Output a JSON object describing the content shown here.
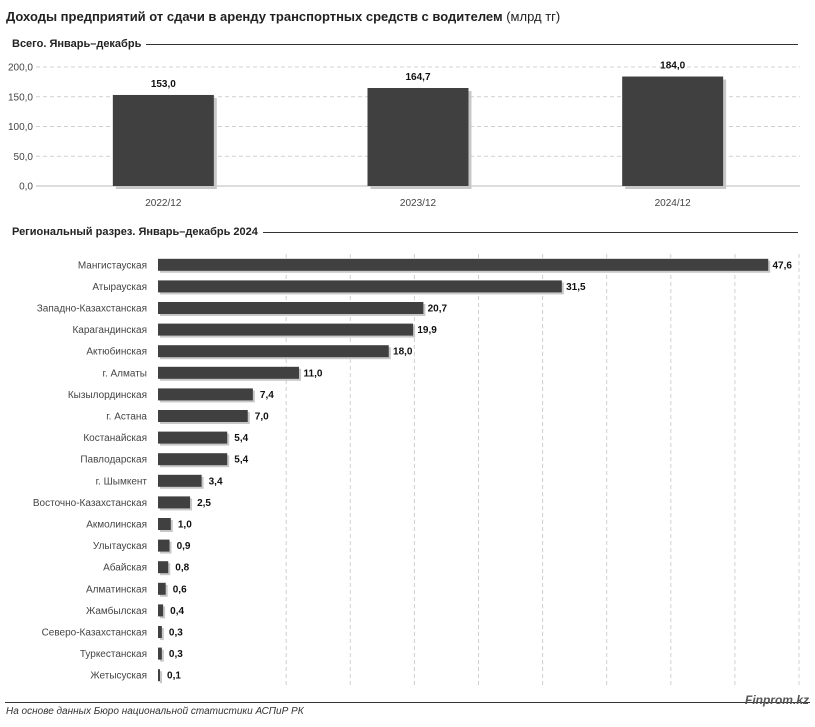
{
  "header": {
    "title_main": "Доходы предприятий от сдачи в аренду транспортных средств с водителем",
    "title_unit": "(млрд тг)"
  },
  "sections": {
    "total": "Всего. Январь–декабрь",
    "regional": "Региональный разрез. Январь–декабрь 2024"
  },
  "footer": {
    "source": "На основе данных Бюро национальной статистики АСПиР РК",
    "brand": "Finprom.kz"
  },
  "colors": {
    "bar": "#404040",
    "grid": "#d0d0d0",
    "rule": "#333333"
  },
  "chart_data": [
    {
      "type": "bar",
      "title": "Всего. Январь–декабрь",
      "categories": [
        "2022/12",
        "2023/12",
        "2024/12"
      ],
      "values": [
        153.0,
        164.7,
        184.0
      ],
      "labels": [
        "153,0",
        "164,7",
        "184,0"
      ],
      "yticks": [
        "0,0",
        "50,0",
        "100,0",
        "150,0",
        "200,0"
      ],
      "ylim": [
        0,
        200
      ],
      "grid": true,
      "legend": "none"
    },
    {
      "type": "bar",
      "orientation": "horizontal",
      "title": "Региональный разрез. Январь–декабрь 2024",
      "categories": [
        "Мангистауская",
        "Атырауская",
        "Западно-Казахстанская",
        "Карагандинская",
        "Актюбинская",
        "г. Алматы",
        "Кызылординская",
        "г. Астана",
        "Костанайская",
        "Павлодарская",
        "г. Шымкент",
        "Восточно-Казахстанская",
        "Акмолинская",
        "Улытауская",
        "Абайская",
        "Алматинская",
        "Жамбылская",
        "Северо-Казахстанская",
        "Туркестанская",
        "Жетысуская"
      ],
      "values": [
        47.6,
        31.5,
        20.7,
        19.9,
        18.0,
        11.0,
        7.4,
        7.0,
        5.4,
        5.4,
        3.4,
        2.5,
        1.0,
        0.9,
        0.8,
        0.6,
        0.4,
        0.3,
        0.3,
        0.1
      ],
      "labels": [
        "47,6",
        "31,5",
        "20,7",
        "19,9",
        "18,0",
        "11,0",
        "7,4",
        "7,0",
        "5,4",
        "5,4",
        "3,4",
        "2,5",
        "1,0",
        "0,9",
        "0,8",
        "0,6",
        "0,4",
        "0,3",
        "0,3",
        "0,1"
      ],
      "xlim": [
        0,
        50
      ],
      "grid": true,
      "legend": "none"
    }
  ]
}
